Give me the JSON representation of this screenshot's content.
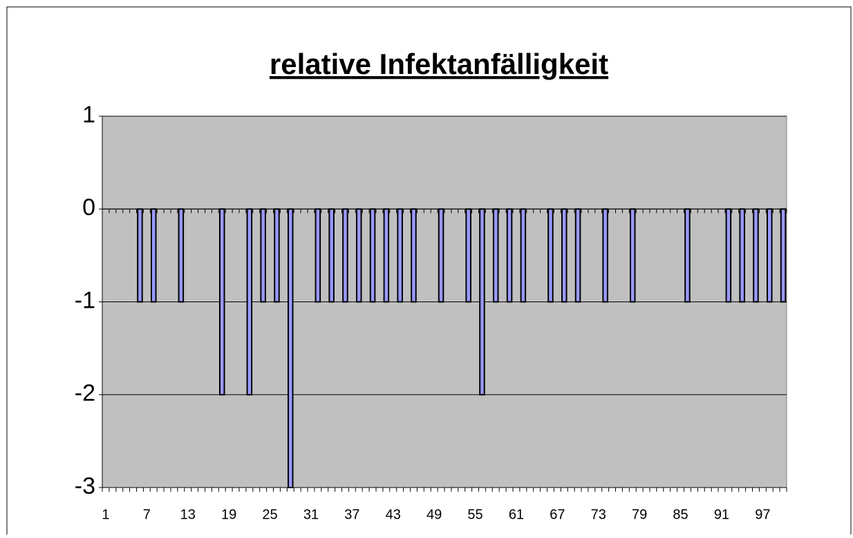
{
  "chart_data": {
    "type": "bar",
    "title": "relative Infektanfälligkeit",
    "categories": [
      1,
      null,
      null,
      null,
      null,
      null,
      7,
      null,
      null,
      null,
      null,
      null,
      13,
      null,
      null,
      null,
      null,
      null,
      19,
      null,
      null,
      null,
      null,
      null,
      25,
      null,
      null,
      null,
      null,
      null,
      31,
      null,
      null,
      null,
      null,
      null,
      37,
      null,
      null,
      null,
      null,
      null,
      43,
      null,
      null,
      null,
      null,
      null,
      49,
      null,
      null,
      null,
      null,
      null,
      55,
      null,
      null,
      null,
      null,
      null,
      61,
      null,
      null,
      null,
      null,
      null,
      67,
      null,
      null,
      null,
      null,
      null,
      73,
      null,
      null,
      null,
      null,
      null,
      79,
      null,
      null,
      null,
      null,
      null,
      85,
      null,
      null,
      null,
      null,
      null,
      91,
      null,
      null,
      null,
      null,
      null,
      97,
      null,
      null,
      null
    ],
    "values": [
      null,
      0,
      null,
      0,
      null,
      -1,
      null,
      -1,
      null,
      0,
      null,
      -1,
      null,
      null,
      null,
      0,
      null,
      -2,
      null,
      0,
      null,
      -2,
      null,
      -1,
      null,
      -1,
      null,
      -3,
      null,
      0,
      null,
      -1,
      null,
      -1,
      null,
      -1,
      null,
      -1,
      null,
      -1,
      null,
      -1,
      null,
      -1,
      null,
      -1,
      null,
      0,
      null,
      -1,
      null,
      0,
      null,
      -1,
      null,
      -2,
      null,
      -1,
      null,
      -1,
      null,
      -1,
      null,
      0,
      null,
      -1,
      null,
      -1,
      null,
      -1,
      null,
      0,
      null,
      -1,
      null,
      0,
      null,
      -1,
      null,
      0,
      null,
      0,
      null,
      0,
      null,
      -1,
      null,
      0,
      null,
      0,
      null,
      -1,
      null,
      -1,
      null,
      -1,
      null,
      -1,
      null,
      -1
    ],
    "color": "#9999ff",
    "ylim": [
      -3,
      1
    ],
    "yticks": [
      1,
      0,
      -1,
      -2,
      -3
    ],
    "grid": true
  }
}
